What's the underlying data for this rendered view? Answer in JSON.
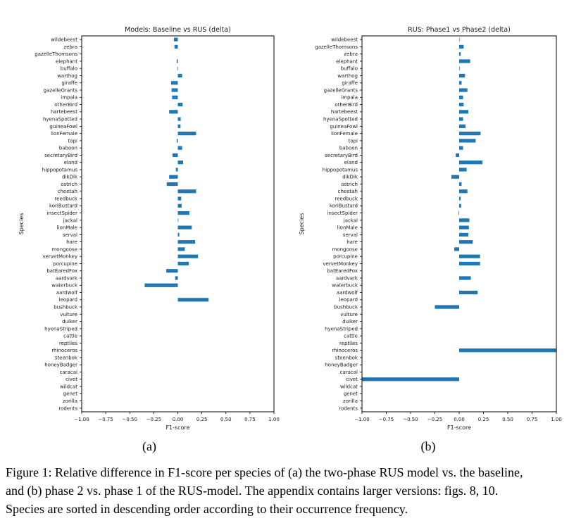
{
  "page": {
    "background": "#ffffff"
  },
  "colors": {
    "bar": "#1f77b4",
    "axis": "#000000",
    "text": "#1a1a1a"
  },
  "figure_caption": {
    "subfig_a": "(a)",
    "subfig_b": "(b)",
    "lines": [
      "Figure 1: Relative difference in F1-score per species of (a) the two-phase RUS model vs. the baseline,",
      "and (b) phase 2 vs. phase 1 of the RUS-model. The appendix contains larger versions: figs. 8, 10.",
      "Species are sorted in descending order according to their occurrence frequency."
    ]
  },
  "chart_data": [
    {
      "name": "a",
      "type": "bar",
      "orientation": "horizontal",
      "title": "Models: Baseline vs RUS (delta)",
      "xlabel": "F1-score",
      "ylabel": "Species",
      "xlim": [
        -1.0,
        1.0
      ],
      "grid": false,
      "legend": "none",
      "xticks": [
        -1.0,
        -0.75,
        -0.5,
        -0.25,
        0.0,
        0.25,
        0.5,
        0.75,
        1.0
      ],
      "xtick_labels": [
        "−1.00",
        "−0.75",
        "−0.50",
        "−0.25",
        "0.00",
        "0.25",
        "0.50",
        "0.75",
        "1.00"
      ],
      "categories": [
        "wildebeest",
        "zebra",
        "gazelleThomsons",
        "elephant",
        "buffalo",
        "warthog",
        "giraffe",
        "gazelleGrants",
        "impala",
        "otherBird",
        "hartebeest",
        "hyenaSpotted",
        "guineaFowl",
        "lionFemale",
        "topi",
        "baboon",
        "secretaryBird",
        "eland",
        "hippopotamus",
        "dikDik",
        "ostrich",
        "cheetah",
        "reedbuck",
        "koriBustard",
        "insectSpider",
        "jackal",
        "lionMale",
        "serval",
        "hare",
        "mongoose",
        "vervetMonkey",
        "porcupine",
        "batEaredFox",
        "aardvark",
        "waterbuck",
        "aardwolf",
        "leopard",
        "bushbuck",
        "vulture",
        "duiker",
        "hyenaStriped",
        "cattle",
        "reptiles",
        "rhinoceros",
        "steenbok",
        "honeyBadger",
        "caracal",
        "civet",
        "wildcat",
        "genet",
        "zorilla",
        "rodents"
      ],
      "values": [
        -0.04,
        -0.035,
        0,
        -0.012,
        -0.006,
        0.045,
        -0.07,
        -0.065,
        -0.06,
        0.05,
        -0.09,
        0.03,
        0.028,
        0.19,
        -0.012,
        0.045,
        -0.055,
        0.055,
        -0.02,
        -0.09,
        -0.115,
        0.19,
        0.035,
        0.04,
        0.12,
        0.006,
        0.145,
        0.015,
        0.18,
        0.073,
        0.21,
        0.115,
        -0.12,
        -0.028,
        -0.345,
        0,
        0.32,
        0,
        0,
        0,
        0,
        0,
        0,
        0,
        0,
        0,
        0,
        0,
        0,
        0,
        0,
        0
      ]
    },
    {
      "name": "b",
      "type": "bar",
      "orientation": "horizontal",
      "title": "RUS: Phase1 vs Phase2 (delta)",
      "xlabel": "F1-score",
      "ylabel": "Species",
      "xlim": [
        -1.0,
        1.0
      ],
      "grid": false,
      "legend": "none",
      "xticks": [
        -1.0,
        -0.75,
        -0.5,
        -0.25,
        0.0,
        0.25,
        0.5,
        0.75,
        1.0
      ],
      "xtick_labels": [
        "−1.00",
        "−0.75",
        "−0.50",
        "−0.25",
        "0.00",
        "0.25",
        "0.50",
        "0.75",
        "1.00"
      ],
      "categories": [
        "wildebeest",
        "gazelleThomsons",
        "zebra",
        "elephant",
        "buffalo",
        "warthog",
        "giraffe",
        "gazelleGrants",
        "impala",
        "otherBird",
        "hartebeest",
        "hyenaSpotted",
        "guineaFowl",
        "lionFemale",
        "topi",
        "baboon",
        "secretaryBird",
        "eland",
        "hippopotamus",
        "dikDik",
        "ostrich",
        "cheetah",
        "reedbuck",
        "koriBustard",
        "insectSpider",
        "jackal",
        "lionMale",
        "serval",
        "hare",
        "mongoose",
        "porcupine",
        "vervetMonkey",
        "batEaredFox",
        "aardvark",
        "waterbuck",
        "aardwolf",
        "leopard",
        "bushbuck",
        "vulture",
        "duiker",
        "hyenaStriped",
        "cattle",
        "reptiles",
        "rhinoceros",
        "steenbok",
        "honeyBadger",
        "caracal",
        "civet",
        "wildcat",
        "genet",
        "zorilla",
        "rodents"
      ],
      "values": [
        0.004,
        0.046,
        0.015,
        0.113,
        0.005,
        0.06,
        0.025,
        0.085,
        0.04,
        0.046,
        0.095,
        0.04,
        0.065,
        0.22,
        0.17,
        0.04,
        -0.035,
        0.24,
        0.077,
        -0.08,
        0.025,
        0.085,
        0.015,
        0.02,
        -0.006,
        0.105,
        0.1,
        0.095,
        0.14,
        -0.05,
        0.215,
        0.215,
        0,
        0.12,
        0,
        0.19,
        0,
        -0.25,
        0,
        0,
        0,
        0,
        0,
        1.0,
        0,
        0,
        0,
        -1.0,
        0,
        0,
        0,
        0
      ]
    }
  ]
}
